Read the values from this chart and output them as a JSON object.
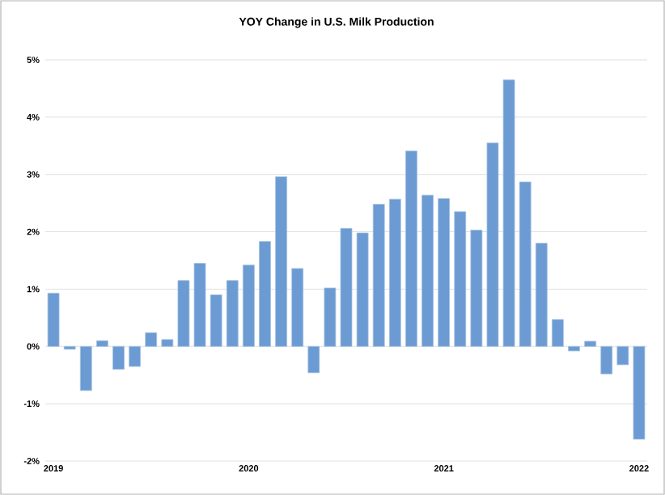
{
  "chart_data": {
    "type": "bar",
    "title": "YOY Change in U.S. Milk Production",
    "categories": [
      "2019",
      null,
      null,
      null,
      null,
      null,
      null,
      null,
      null,
      null,
      null,
      null,
      "2020",
      null,
      null,
      null,
      null,
      null,
      null,
      null,
      null,
      null,
      null,
      null,
      "2021",
      null,
      null,
      null,
      null,
      null,
      null,
      null,
      null,
      null,
      null,
      null,
      "2022"
    ],
    "values": [
      0.93,
      -0.05,
      -0.77,
      0.1,
      -0.4,
      -0.35,
      0.24,
      0.12,
      1.15,
      1.45,
      0.9,
      1.15,
      1.42,
      1.83,
      2.96,
      1.36,
      -0.46,
      1.02,
      2.06,
      1.98,
      2.48,
      2.57,
      3.41,
      2.64,
      2.58,
      2.35,
      2.03,
      3.55,
      4.65,
      2.87,
      1.8,
      0.47,
      -0.08,
      0.09,
      -0.48,
      -0.32,
      -1.62
    ],
    "color": "#6b9bd2",
    "ylim": [
      -2,
      5
    ],
    "yticks": [
      {
        "value": -2,
        "label": "-2%"
      },
      {
        "value": -1,
        "label": "-1%"
      },
      {
        "value": 0,
        "label": "0%"
      },
      {
        "value": 1,
        "label": "1%"
      },
      {
        "value": 2,
        "label": "2%"
      },
      {
        "value": 3,
        "label": "3%"
      },
      {
        "value": 4,
        "label": "4%"
      },
      {
        "value": 5,
        "label": "5%"
      }
    ],
    "grid": "y"
  }
}
